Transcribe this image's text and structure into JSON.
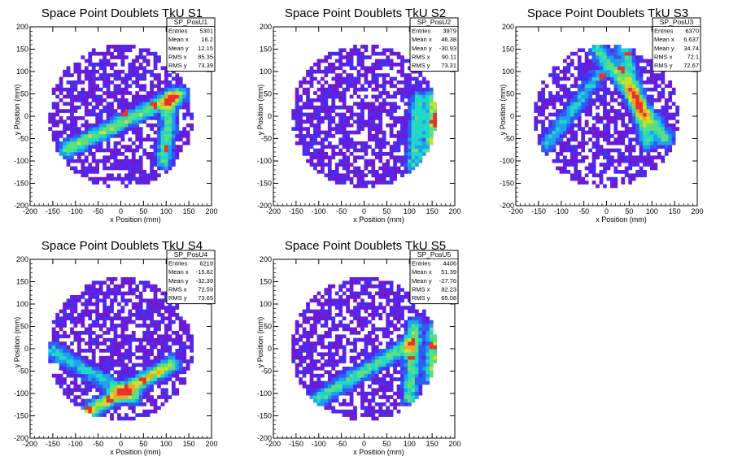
{
  "chart_data": [
    {
      "type": "heatmap",
      "title": "Space Point Doublets TkU S1",
      "xlabel": "x Position (mm)",
      "ylabel": "y Position (mm)",
      "xlim": [
        -200,
        200
      ],
      "ylim": [
        -200,
        200
      ],
      "x_ticks": [
        -200,
        -150,
        -100,
        -50,
        0,
        50,
        100,
        150,
        200
      ],
      "y_ticks": [
        -200,
        -150,
        -100,
        -50,
        0,
        50,
        100,
        150,
        200
      ],
      "fill_radius_mm": 160,
      "stats": {
        "name": "SP_PosU1",
        "rows": [
          {
            "label": "Entries",
            "value": "5301"
          },
          {
            "label": "Mean x",
            "value": "16.2"
          },
          {
            "label": "Mean y",
            "value": "12.15"
          },
          {
            "label": "RMS x",
            "value": "85.35"
          },
          {
            "label": "RMS y",
            "value": "73.39"
          }
        ]
      },
      "features": {
        "bands": [
          {
            "x1": -120,
            "y1": -75,
            "x2": 130,
            "y2": 50,
            "weight": 0.55
          },
          {
            "x1": 95,
            "y1": -100,
            "x2": 110,
            "y2": 40,
            "weight": 0.5
          }
        ],
        "hot": [
          [
            100,
            -75
          ],
          [
            75,
            25
          ],
          [
            10,
            5
          ]
        ]
      }
    },
    {
      "type": "heatmap",
      "title": "Space Point Doublets TkU S2",
      "xlabel": "x Position (mm)",
      "ylabel": "y Position (mm)",
      "xlim": [
        -200,
        200
      ],
      "ylim": [
        -200,
        200
      ],
      "x_ticks": [
        -200,
        -150,
        -100,
        -50,
        0,
        50,
        100,
        150,
        200
      ],
      "y_ticks": [
        -200,
        -150,
        -100,
        -50,
        0,
        50,
        100,
        150,
        200
      ],
      "fill_radius_mm": 160,
      "stats": {
        "name": "SP_PosU2",
        "rows": [
          {
            "label": "Entries",
            "value": "3979"
          },
          {
            "label": "Mean x",
            "value": "46.38"
          },
          {
            "label": "Mean y",
            "value": "-30.93"
          },
          {
            "label": "RMS x",
            "value": "90.11"
          },
          {
            "label": "RMS y",
            "value": "73.31"
          }
        ]
      },
      "features": {
        "bands": [
          {
            "x1": 150,
            "y1": -90,
            "x2": 155,
            "y2": 40,
            "weight": 0.6
          },
          {
            "x1": 110,
            "y1": -110,
            "x2": 120,
            "y2": 40,
            "weight": 0.45
          }
        ],
        "hot": [
          [
            155,
            0
          ],
          [
            155,
            -15
          ]
        ]
      }
    },
    {
      "type": "heatmap",
      "title": "Space Point Doublets TkU S3",
      "xlabel": "x Position (mm)",
      "ylabel": "y Position (mm)",
      "xlim": [
        -200,
        200
      ],
      "ylim": [
        -200,
        200
      ],
      "x_ticks": [
        -200,
        -150,
        -100,
        -50,
        0,
        50,
        100,
        150,
        200
      ],
      "y_ticks": [
        -200,
        -150,
        -100,
        -50,
        0,
        50,
        100,
        150,
        200
      ],
      "fill_radius_mm": 160,
      "stats": {
        "name": "SP_PosU3",
        "rows": [
          {
            "label": "Entries",
            "value": "6370"
          },
          {
            "label": "Mean x",
            "value": "6.637"
          },
          {
            "label": "Mean y",
            "value": "34.74"
          },
          {
            "label": "RMS x",
            "value": "72.1"
          },
          {
            "label": "RMS y",
            "value": "72.67"
          }
        ]
      },
      "features": {
        "bands": [
          {
            "x1": -20,
            "y1": 150,
            "x2": 130,
            "y2": -50,
            "weight": 0.5
          },
          {
            "x1": 40,
            "y1": 150,
            "x2": 90,
            "y2": -60,
            "weight": 0.45
          },
          {
            "x1": -130,
            "y1": -60,
            "x2": -20,
            "y2": 90,
            "weight": 0.35
          }
        ],
        "hot": [
          [
            45,
            140
          ],
          [
            35,
            105
          ],
          [
            -10,
            90
          ]
        ]
      }
    },
    {
      "type": "heatmap",
      "title": "Space Point Doublets TkU S4",
      "xlabel": "x Position (mm)",
      "ylabel": "y Position (mm)",
      "xlim": [
        -200,
        200
      ],
      "ylim": [
        -200,
        200
      ],
      "x_ticks": [
        -200,
        -150,
        -100,
        -50,
        0,
        50,
        100,
        150,
        200
      ],
      "y_ticks": [
        -200,
        -150,
        -100,
        -50,
        0,
        50,
        100,
        150,
        200
      ],
      "fill_radius_mm": 160,
      "stats": {
        "name": "SP_PosU4",
        "rows": [
          {
            "label": "Entries",
            "value": "6219"
          },
          {
            "label": "Mean x",
            "value": "-15.82"
          },
          {
            "label": "Mean y",
            "value": "-32.39"
          },
          {
            "label": "RMS x",
            "value": "72.59"
          },
          {
            "label": "RMS y",
            "value": "73.65"
          }
        ]
      },
      "features": {
        "bands": [
          {
            "x1": -70,
            "y1": -140,
            "x2": 110,
            "y2": -35,
            "weight": 0.65
          },
          {
            "x1": -150,
            "y1": -5,
            "x2": 30,
            "y2": -110,
            "weight": 0.4
          }
        ],
        "hot": [
          [
            50,
            -70
          ],
          [
            -70,
            -135
          ],
          [
            -25,
            -115
          ]
        ]
      }
    },
    {
      "type": "heatmap",
      "title": "Space Point Doublets TkU S5",
      "xlabel": "x Position (mm)",
      "ylabel": "y Position (mm)",
      "xlim": [
        -200,
        200
      ],
      "ylim": [
        -200,
        200
      ],
      "x_ticks": [
        -200,
        -150,
        -100,
        -50,
        0,
        50,
        100,
        150,
        200
      ],
      "y_ticks": [
        -200,
        -150,
        -100,
        -50,
        0,
        50,
        100,
        150,
        200
      ],
      "fill_radius_mm": 160,
      "stats": {
        "name": "SP_PosU5",
        "rows": [
          {
            "label": "Entries",
            "value": "4406"
          },
          {
            "label": "Mean x",
            "value": "51.39"
          },
          {
            "label": "Mean y",
            "value": "-27.76"
          },
          {
            "label": "RMS x",
            "value": "82.23"
          },
          {
            "label": "RMS y",
            "value": "65.08"
          }
        ]
      },
      "features": {
        "bands": [
          {
            "x1": -100,
            "y1": -110,
            "x2": 100,
            "y2": 10,
            "weight": 0.5
          },
          {
            "x1": 100,
            "y1": -110,
            "x2": 110,
            "y2": 50,
            "weight": 0.5
          },
          {
            "x1": 150,
            "y1": -60,
            "x2": 155,
            "y2": 40,
            "weight": 0.55
          }
        ],
        "hot": [
          [
            150,
            5
          ],
          [
            105,
            -20
          ]
        ]
      }
    }
  ],
  "palette": [
    "#6b1bd6",
    "#4a2cf0",
    "#2f5cf5",
    "#1ea0f0",
    "#22d6c8",
    "#5ae07c",
    "#c8e02c",
    "#f5a623",
    "#e8332a"
  ]
}
